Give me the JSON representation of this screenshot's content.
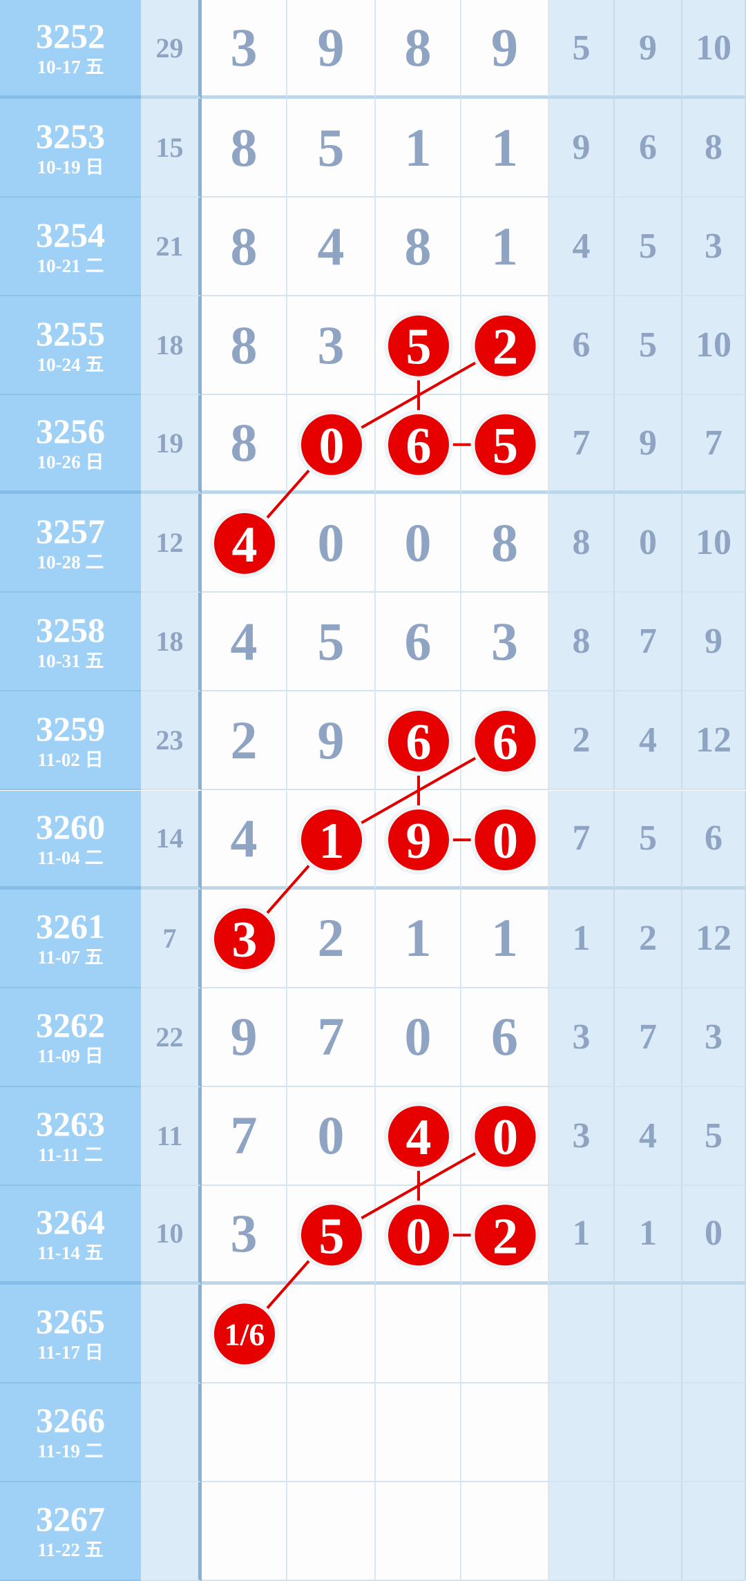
{
  "chart_data": {
    "type": "table",
    "columns": [
      "issue",
      "date",
      "sum",
      "d1",
      "d2",
      "d3",
      "d4",
      "x1",
      "x2",
      "x3"
    ],
    "rows": [
      {
        "issue": "3252",
        "date": "10-17 五",
        "sum": "29",
        "digits": [
          "3",
          "9",
          "8",
          "9"
        ],
        "extra": [
          "5",
          "9",
          "10"
        ]
      },
      {
        "issue": "3253",
        "date": "10-19 日",
        "sum": "15",
        "digits": [
          "8",
          "5",
          "1",
          "1"
        ],
        "extra": [
          "9",
          "6",
          "8"
        ]
      },
      {
        "issue": "3254",
        "date": "10-21 二",
        "sum": "21",
        "digits": [
          "8",
          "4",
          "8",
          "1"
        ],
        "extra": [
          "4",
          "5",
          "3"
        ]
      },
      {
        "issue": "3255",
        "date": "10-24 五",
        "sum": "18",
        "digits": [
          "8",
          "3",
          "5",
          "2"
        ],
        "extra": [
          "6",
          "5",
          "10"
        ]
      },
      {
        "issue": "3256",
        "date": "10-26 日",
        "sum": "19",
        "digits": [
          "8",
          "0",
          "6",
          "5"
        ],
        "extra": [
          "7",
          "9",
          "7"
        ]
      },
      {
        "issue": "3257",
        "date": "10-28 二",
        "sum": "12",
        "digits": [
          "4",
          "0",
          "0",
          "8"
        ],
        "extra": [
          "8",
          "0",
          "10"
        ]
      },
      {
        "issue": "3258",
        "date": "10-31 五",
        "sum": "18",
        "digits": [
          "4",
          "5",
          "6",
          "3"
        ],
        "extra": [
          "8",
          "7",
          "9"
        ]
      },
      {
        "issue": "3259",
        "date": "11-02 日",
        "sum": "23",
        "digits": [
          "2",
          "9",
          "6",
          "6"
        ],
        "extra": [
          "2",
          "4",
          "12"
        ]
      },
      {
        "issue": "3260",
        "date": "11-04 二",
        "sum": "14",
        "digits": [
          "4",
          "1",
          "9",
          "0"
        ],
        "extra": [
          "7",
          "5",
          "6"
        ]
      },
      {
        "issue": "3261",
        "date": "11-07 五",
        "sum": "7",
        "digits": [
          "3",
          "2",
          "1",
          "1"
        ],
        "extra": [
          "1",
          "2",
          "12"
        ]
      },
      {
        "issue": "3262",
        "date": "11-09 日",
        "sum": "22",
        "digits": [
          "9",
          "7",
          "0",
          "6"
        ],
        "extra": [
          "3",
          "7",
          "3"
        ]
      },
      {
        "issue": "3263",
        "date": "11-11 二",
        "sum": "11",
        "digits": [
          "7",
          "0",
          "4",
          "0"
        ],
        "extra": [
          "3",
          "4",
          "5"
        ]
      },
      {
        "issue": "3264",
        "date": "11-14 五",
        "sum": "10",
        "digits": [
          "3",
          "5",
          "0",
          "2"
        ],
        "extra": [
          "1",
          "1",
          "0"
        ]
      },
      {
        "issue": "3265",
        "date": "11-17 日",
        "sum": "",
        "digits": [
          "1/6",
          "",
          "",
          ""
        ],
        "extra": [
          "",
          "",
          ""
        ]
      },
      {
        "issue": "3266",
        "date": "11-19 二",
        "sum": "",
        "digits": [
          "",
          "",
          "",
          ""
        ],
        "extra": [
          "",
          "",
          ""
        ]
      },
      {
        "issue": "3267",
        "date": "11-22 五",
        "sum": "",
        "digits": [
          "",
          "",
          "",
          ""
        ],
        "extra": [
          "",
          "",
          ""
        ]
      }
    ],
    "highlights": [
      {
        "row": 3,
        "col": 2
      },
      {
        "row": 3,
        "col": 3
      },
      {
        "row": 4,
        "col": 1
      },
      {
        "row": 4,
        "col": 2
      },
      {
        "row": 4,
        "col": 3
      },
      {
        "row": 5,
        "col": 0
      },
      {
        "row": 7,
        "col": 2
      },
      {
        "row": 7,
        "col": 3
      },
      {
        "row": 8,
        "col": 1
      },
      {
        "row": 8,
        "col": 2
      },
      {
        "row": 8,
        "col": 3
      },
      {
        "row": 9,
        "col": 0
      },
      {
        "row": 11,
        "col": 2
      },
      {
        "row": 11,
        "col": 3
      },
      {
        "row": 12,
        "col": 1
      },
      {
        "row": 12,
        "col": 2
      },
      {
        "row": 12,
        "col": 3
      },
      {
        "row": 13,
        "col": 0
      }
    ],
    "links": [
      [
        [
          3,
          2
        ],
        [
          4,
          2
        ]
      ],
      [
        [
          3,
          3
        ],
        [
          4,
          1
        ]
      ],
      [
        [
          4,
          2
        ],
        [
          4,
          3
        ]
      ],
      [
        [
          4,
          1
        ],
        [
          5,
          0
        ]
      ],
      [
        [
          7,
          2
        ],
        [
          8,
          2
        ]
      ],
      [
        [
          7,
          3
        ],
        [
          8,
          1
        ]
      ],
      [
        [
          8,
          2
        ],
        [
          8,
          3
        ]
      ],
      [
        [
          8,
          1
        ],
        [
          9,
          0
        ]
      ],
      [
        [
          11,
          2
        ],
        [
          12,
          2
        ]
      ],
      [
        [
          11,
          3
        ],
        [
          12,
          1
        ]
      ],
      [
        [
          12,
          2
        ],
        [
          12,
          3
        ]
      ],
      [
        [
          12,
          1
        ],
        [
          13,
          0
        ]
      ]
    ],
    "group_separators_after_rows": [
      0,
      4,
      8,
      12
    ],
    "colors": {
      "highlight": "#e60000",
      "digit": "#8ea4c2",
      "issue_bg": "#9fd1f7",
      "side_bg": "#dcebf8",
      "link": "#e00000"
    }
  }
}
